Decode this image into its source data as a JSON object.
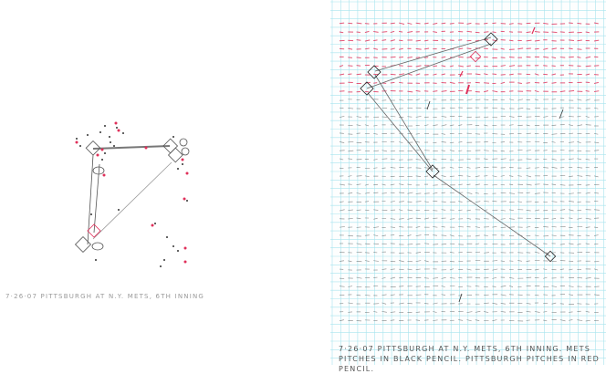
{
  "left_drawing": {
    "caption": "7·26·07 Pittsburgh at N.Y. Mets, 6th inning",
    "colors": {
      "mets": "#333333",
      "pittsburgh": "#e0305a"
    }
  },
  "right_drawing": {
    "caption": "7·26·07 Pittsburgh at N.Y. Mets, 6th inning. Mets pitches in black pencil. Pittsburgh pitches in red pencil.",
    "colors": {
      "grid": "#a8e4ee",
      "mets": "#333333",
      "pittsburgh": "#e0305a"
    }
  }
}
